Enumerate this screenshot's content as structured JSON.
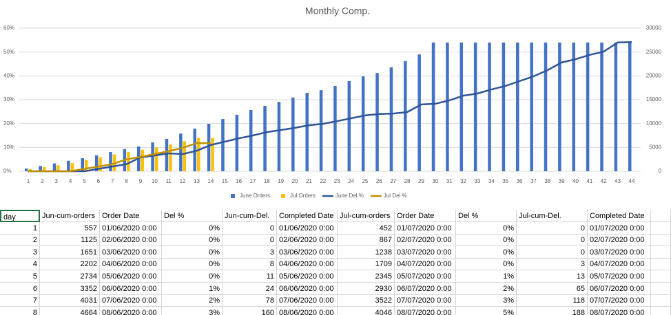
{
  "chart_data": {
    "type": "combo",
    "title": "Monthly Comp.",
    "categories": [
      1,
      2,
      3,
      4,
      5,
      6,
      7,
      8,
      9,
      10,
      11,
      12,
      13,
      14,
      15,
      16,
      17,
      18,
      19,
      20,
      21,
      22,
      23,
      24,
      25,
      26,
      27,
      28,
      29,
      30,
      31,
      32,
      33,
      34,
      35,
      36,
      37,
      38,
      39,
      40,
      41,
      42,
      43,
      44
    ],
    "ylim": [
      0,
      60
    ],
    "yticks": [
      {
        "value": 0,
        "label": "0%"
      },
      {
        "value": 10,
        "label": "10%"
      },
      {
        "value": 20,
        "label": "20%"
      },
      {
        "value": 30,
        "label": "30%"
      },
      {
        "value": 40,
        "label": "40%"
      },
      {
        "value": 50,
        "label": "50%"
      },
      {
        "value": 60,
        "label": "60%"
      }
    ],
    "y2lim": [
      0,
      30000
    ],
    "y2ticks": [
      0,
      5000,
      10000,
      15000,
      20000,
      25000,
      30000
    ],
    "grid": true,
    "legend": "bottom",
    "series": [
      {
        "name": "June Orders",
        "kind": "bar",
        "axis": "y2",
        "color": "#4472c4",
        "values": [
          557,
          1125,
          1651,
          2202,
          2734,
          3352,
          4031,
          4664,
          5200,
          6050,
          6800,
          7900,
          8950,
          9950,
          10950,
          11850,
          12850,
          13700,
          14550,
          15450,
          16450,
          17000,
          17900,
          18900,
          19900,
          20600,
          21800,
          23100,
          24500,
          27000,
          27000,
          27000,
          27000,
          27000,
          27000,
          27000,
          27000,
          27000,
          27000,
          27000,
          27000,
          27000,
          27000,
          27000
        ]
      },
      {
        "name": "Jul Orders",
        "kind": "bar",
        "axis": "y2",
        "color": "#ffc000",
        "values": [
          452,
          867,
          1238,
          1709,
          2345,
          2930,
          3522,
          4046,
          4500,
          5000,
          5600,
          6300,
          7000,
          7000,
          null,
          null,
          null,
          null,
          null,
          null,
          null,
          null,
          null,
          null,
          null,
          null,
          null,
          null,
          null,
          null,
          null,
          null,
          null,
          null,
          null,
          null,
          null,
          null,
          null,
          null,
          null,
          null,
          null,
          null
        ]
      },
      {
        "name": "June Del %",
        "kind": "line",
        "color": "#2f5597",
        "values": [
          0,
          0,
          0,
          0,
          0,
          1,
          2,
          3,
          5.8,
          6.6,
          7.5,
          7.2,
          8.6,
          11,
          12.4,
          13.8,
          15,
          16.4,
          17.3,
          18.2,
          19.3,
          19.9,
          21,
          22.2,
          23.4,
          24,
          24.2,
          24.8,
          28,
          28.3,
          29.7,
          31.7,
          32.6,
          34.3,
          35.8,
          37.8,
          39.8,
          42.4,
          45.6,
          47,
          48.8,
          50.2,
          54,
          54.2
        ]
      },
      {
        "name": "Jul Del %",
        "kind": "line",
        "color": "#bf9000",
        "values": [
          0,
          0,
          0,
          0,
          1,
          2,
          3,
          5,
          6,
          7.2,
          8.4,
          9.8,
          11.8,
          11.8,
          null,
          null,
          null,
          null,
          null,
          null,
          null,
          null,
          null,
          null,
          null,
          null,
          null,
          null,
          null,
          null,
          null,
          null,
          null,
          null,
          null,
          null,
          null,
          null,
          null,
          null,
          null,
          null,
          null,
          null
        ]
      }
    ]
  },
  "table": {
    "header": [
      "day",
      "Jun-cum-orders",
      "Order Date",
      "Del %",
      "Jun-cum-Del.",
      "Completed Date",
      "Jul-cum-orders",
      "Order Date",
      "Del %",
      "Jul-cum-Del.",
      "Completed Date"
    ],
    "rows": [
      [
        "1",
        "557",
        "01/06/2020 0:00",
        "0%",
        "0",
        "01/06/2020 0:00",
        "452",
        "01/07/2020 0:00",
        "0%",
        "0",
        "01/07/2020 0:00"
      ],
      [
        "2",
        "1125",
        "02/06/2020 0:00",
        "0%",
        "0",
        "02/06/2020 0:00",
        "867",
        "02/07/2020 0:00",
        "0%",
        "0",
        "02/07/2020 0:00"
      ],
      [
        "3",
        "1651",
        "03/06/2020 0:00",
        "0%",
        "3",
        "03/06/2020 0:00",
        "1238",
        "03/07/2020 0:00",
        "0%",
        "0",
        "03/07/2020 0:00"
      ],
      [
        "4",
        "2202",
        "04/06/2020 0:00",
        "0%",
        "8",
        "04/06/2020 0:00",
        "1709",
        "04/07/2020 0:00",
        "0%",
        "3",
        "04/07/2020 0:00"
      ],
      [
        "5",
        "2734",
        "05/06/2020 0:00",
        "0%",
        "11",
        "05/06/2020 0:00",
        "2345",
        "05/07/2020 0:00",
        "1%",
        "13",
        "05/07/2020 0:00"
      ],
      [
        "6",
        "3352",
        "06/06/2020 0:00",
        "1%",
        "24",
        "06/06/2020 0:00",
        "2930",
        "06/07/2020 0:00",
        "2%",
        "65",
        "06/07/2020 0:00"
      ],
      [
        "7",
        "4031",
        "07/06/2020 0:00",
        "2%",
        "78",
        "07/06/2020 0:00",
        "3522",
        "07/07/2020 0:00",
        "3%",
        "118",
        "07/07/2020 0:00"
      ],
      [
        "8",
        "4664",
        "08/06/2020 0:00",
        "3%",
        "160",
        "08/06/2020 0:00",
        "4046",
        "08/07/2020 0:00",
        "5%",
        "188",
        "08/07/2020 0:00"
      ]
    ]
  }
}
